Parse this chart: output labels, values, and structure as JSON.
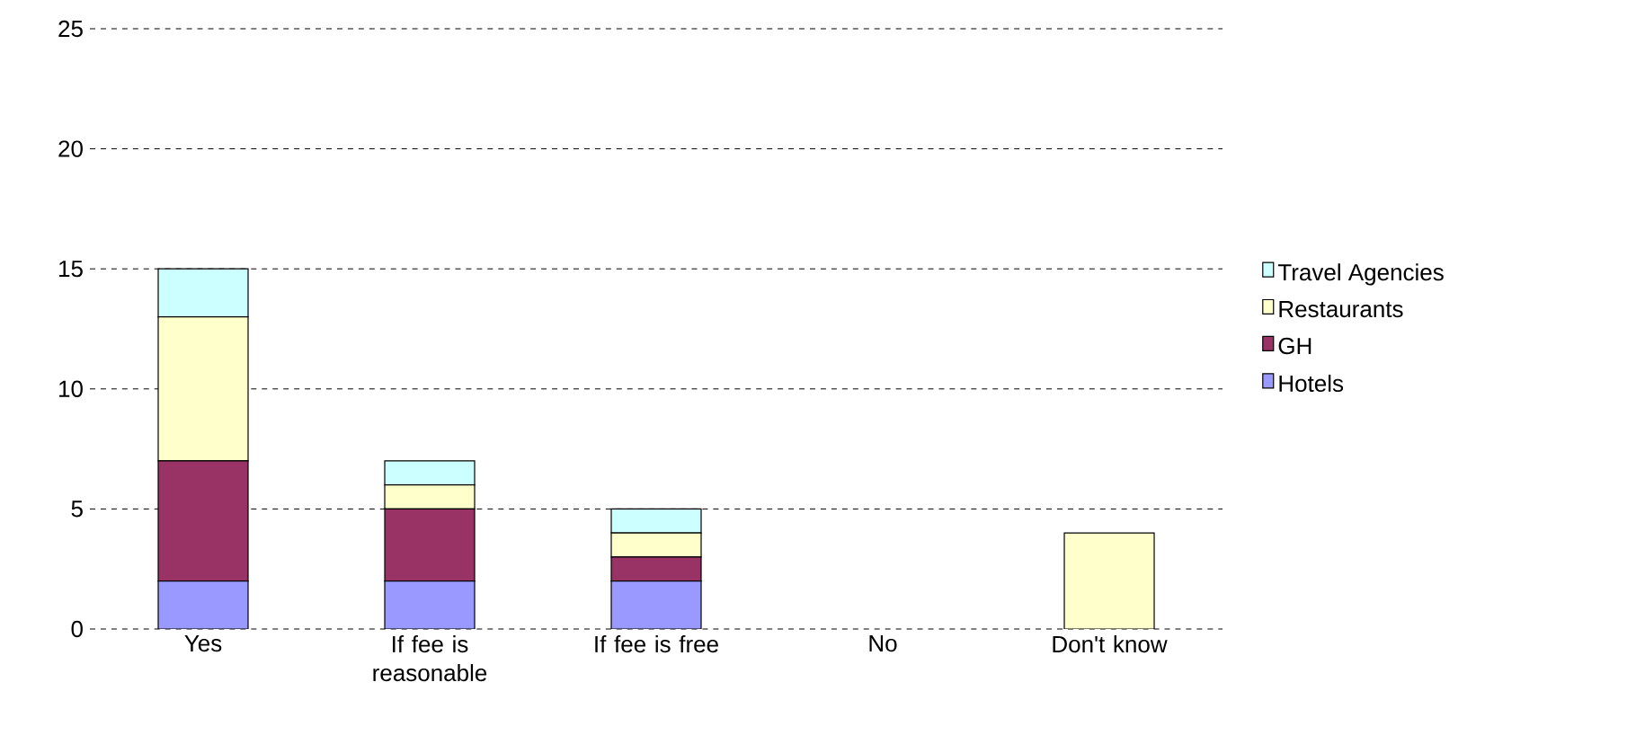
{
  "chart_data": {
    "type": "bar",
    "stacked": true,
    "categories": [
      "Yes",
      "If fee is reasonable",
      "If fee is free",
      "No",
      "Don't know"
    ],
    "series": [
      {
        "name": "Hotels",
        "color": "#9999ff",
        "values": [
          2,
          2,
          2,
          0,
          0
        ]
      },
      {
        "name": "GH",
        "color": "#993366",
        "values": [
          5,
          3,
          1,
          0,
          0
        ]
      },
      {
        "name": "Restaurants",
        "color": "#ffffcc",
        "values": [
          6,
          1,
          1,
          0,
          4
        ]
      },
      {
        "name": "Travel Agencies",
        "color": "#ccffff",
        "values": [
          2,
          1,
          1,
          0,
          0
        ]
      }
    ],
    "ylim": [
      0,
      25
    ],
    "yticks": [
      0,
      5,
      10,
      15,
      20,
      25
    ],
    "grid": "y",
    "legend": "right"
  }
}
